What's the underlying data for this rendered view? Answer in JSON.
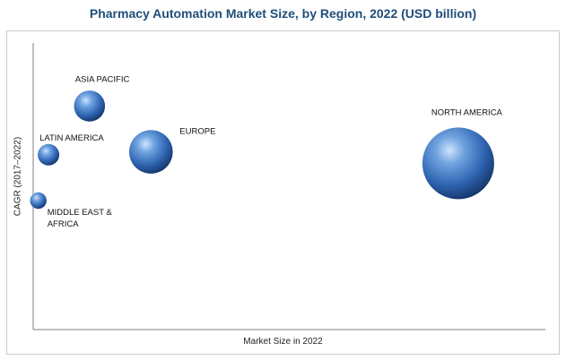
{
  "chart_data": {
    "type": "scatter",
    "title": "Pharmacy Automation Market Size, by Region, 2022 (USD billion)",
    "xlabel": "Market Size in 2022",
    "ylabel": "CAGR (2017–2022)",
    "x_scale": "relative (no tick values shown)",
    "y_scale": "relative (no tick values shown)",
    "grid": false,
    "legend": "none",
    "bubble_color": "#2e6bb8",
    "points": [
      {
        "label": "ASIA PACIFIC",
        "x": 0.11,
        "y": 0.78,
        "size": 0.35
      },
      {
        "label": "LATIN AMERICA",
        "x": 0.03,
        "y": 0.61,
        "size": 0.2
      },
      {
        "label": "EUROPE",
        "x": 0.23,
        "y": 0.62,
        "size": 0.55
      },
      {
        "label": "NORTH AMERICA",
        "x": 0.83,
        "y": 0.58,
        "size": 1.0
      },
      {
        "label": "MIDDLE EAST & AFRICA",
        "x": 0.01,
        "y": 0.45,
        "size": 0.12
      }
    ]
  }
}
